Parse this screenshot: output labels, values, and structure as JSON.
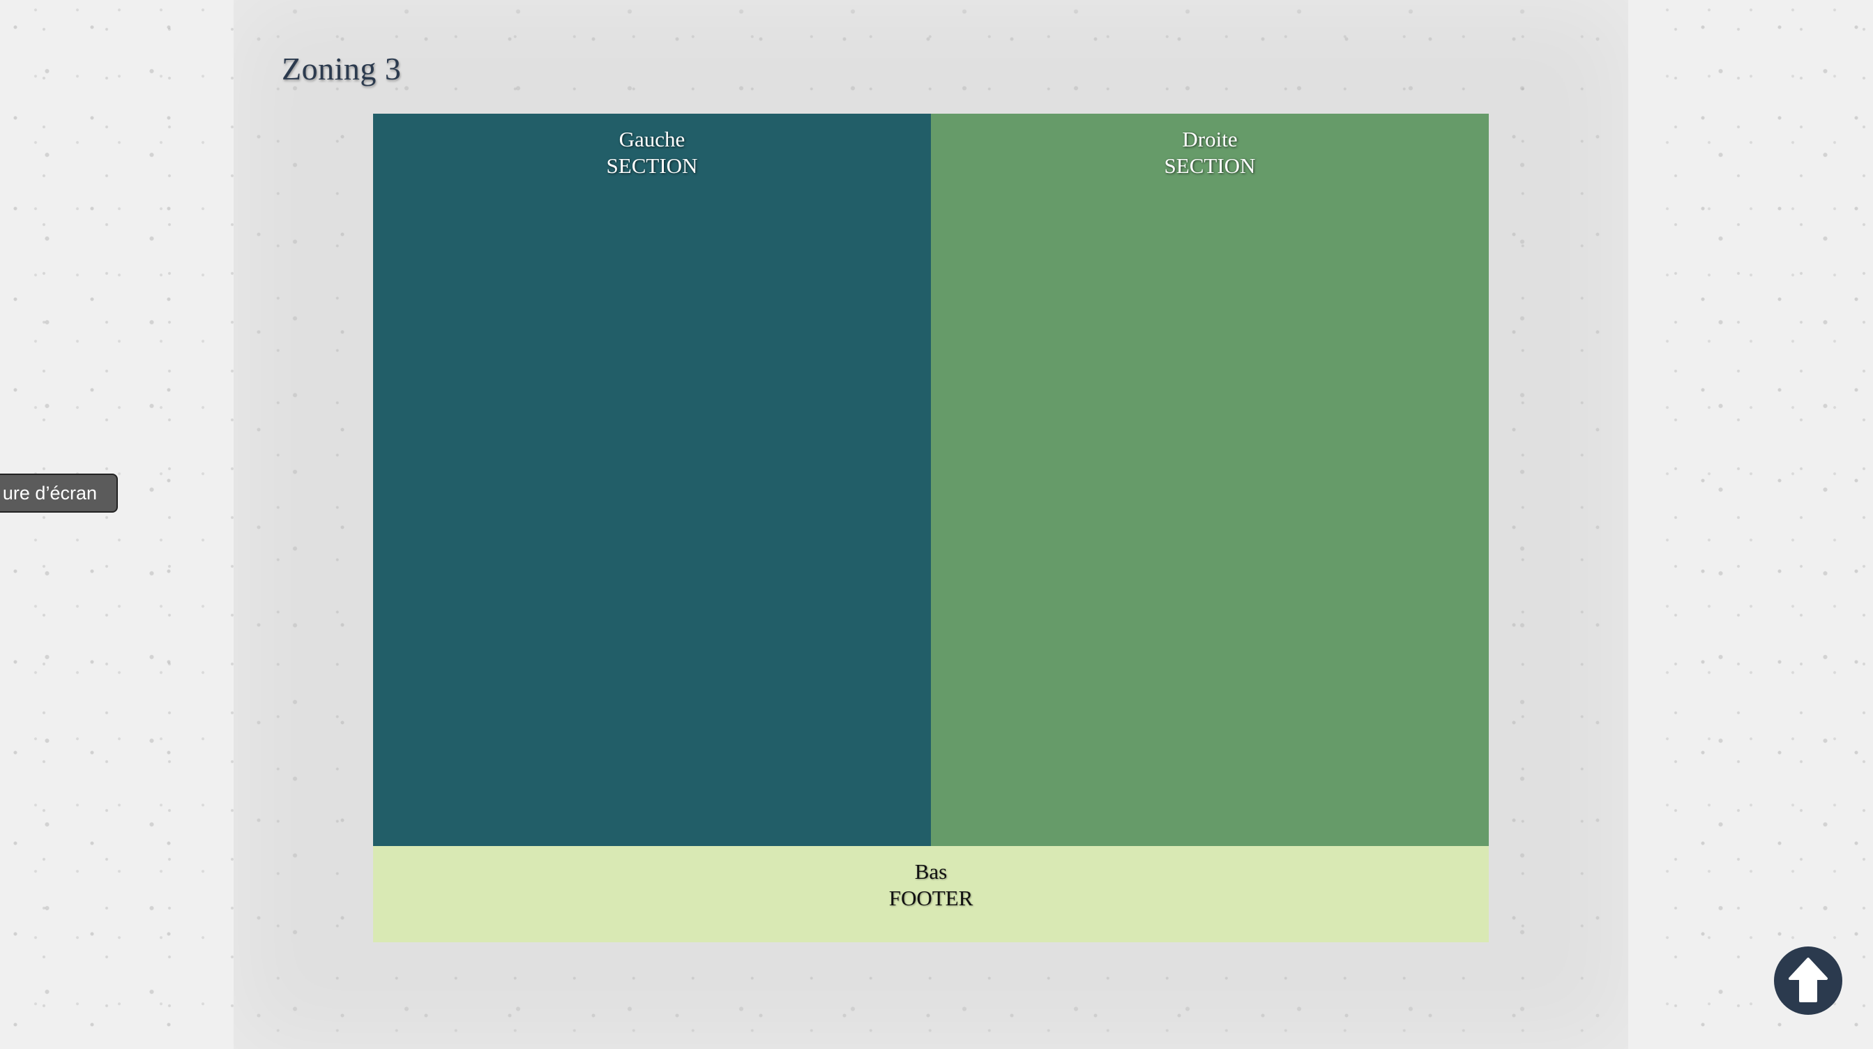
{
  "page": {
    "title": "Zoning 3"
  },
  "zones": {
    "left": {
      "label": "Gauche",
      "tag": "SECTION",
      "color": "#225e68"
    },
    "right": {
      "label": "Droite",
      "tag": "SECTION",
      "color": "#669b69"
    },
    "footer": {
      "label": "Bas",
      "tag": "FOOTER",
      "color": "#d9e9b4"
    }
  },
  "screenshot_button": {
    "label": "ure d’écran"
  },
  "scroll_top": {
    "icon": "arrow-up-circle-icon",
    "color": "#2b3a4e"
  }
}
